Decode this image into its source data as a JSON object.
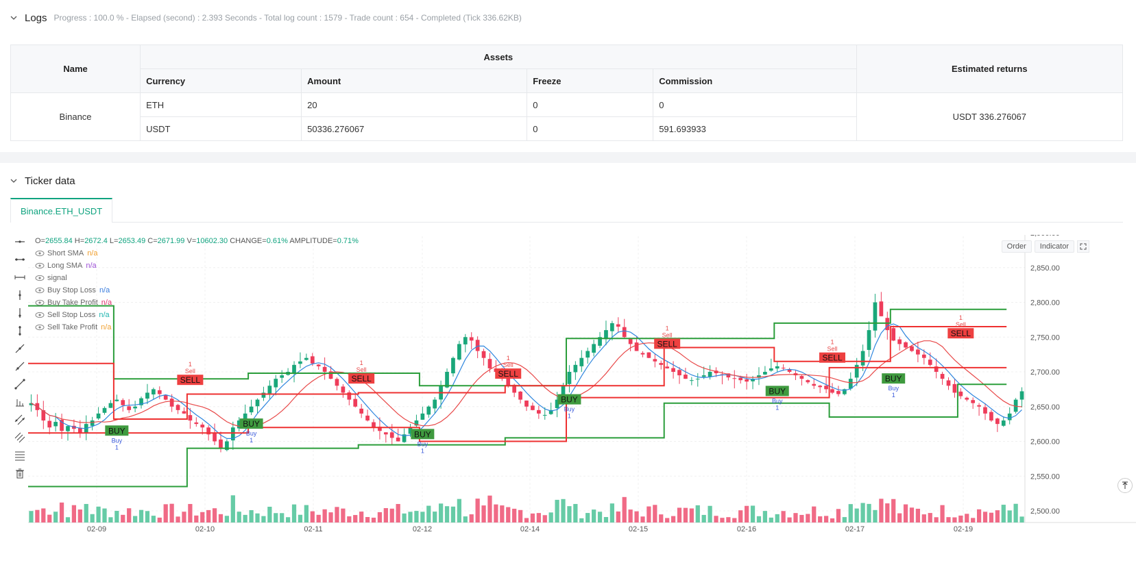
{
  "logs": {
    "title": "Logs",
    "meta": "Progress : 100.0 % - Elapsed (second) : 2.393  Seconds - Total log count : 1579 - Trade count : 654 - Completed (Tick 336.62KB)"
  },
  "assets_table": {
    "col_name": "Name",
    "col_assets": "Assets",
    "col_returns": "Estimated returns",
    "sub_headers": [
      "Currency",
      "Amount",
      "Freeze",
      "Commission"
    ],
    "exchange": "Binance",
    "rows": [
      {
        "currency": "ETH",
        "amount": "20",
        "freeze": "0",
        "commission": "0"
      },
      {
        "currency": "USDT",
        "amount": "50336.276067",
        "freeze": "0",
        "commission": "591.693933"
      }
    ],
    "estimated_returns": "USDT 336.276067"
  },
  "ticker": {
    "title": "Ticker data",
    "tab": "Binance.ETH_USDT"
  },
  "chart_header": {
    "ohlc": [
      {
        "k": "O=",
        "v": "2655.84"
      },
      {
        "k": " H=",
        "v": "2672.4"
      },
      {
        "k": " L=",
        "v": "2653.49"
      },
      {
        "k": " C=",
        "v": "2671.99"
      },
      {
        "k": " V=",
        "v": "10602.30"
      },
      {
        "k": " CHANGE=",
        "v": "0.61%"
      },
      {
        "k": " AMPLITUDE=",
        "v": "0.71%"
      }
    ],
    "indicators": [
      {
        "name": "Short SMA",
        "value": "n/a",
        "color": "#f0a030"
      },
      {
        "name": "Long SMA",
        "value": "n/a",
        "color": "#9c4fd6"
      },
      {
        "name": "signal",
        "value": "",
        "color": "#666666"
      },
      {
        "name": "Buy Stop Loss",
        "value": "n/a",
        "color": "#3b7ddd"
      },
      {
        "name": "Buy Take Profit",
        "value": "n/a",
        "color": "#e0316e"
      },
      {
        "name": "Sell Stop Loss",
        "value": "n/a",
        "color": "#1fb5b0"
      },
      {
        "name": "Sell Take Profit",
        "value": "n/a",
        "color": "#f0a030"
      }
    ],
    "order_btn": "Order",
    "indicator_btn": "Indicator"
  },
  "chart_data": {
    "type": "candlestick",
    "symbol": "ETH_USDT",
    "x_ticks": [
      "02-09",
      "02-10",
      "02-11",
      "02-12",
      "02-14",
      "02-15",
      "02-16",
      "02-17",
      "02-19"
    ],
    "y_ticks": [
      "2,900.00",
      "2,850.00",
      "2,800.00",
      "2,750.00",
      "2,700.00",
      "2,650.00",
      "2,600.00",
      "2,550.00",
      "2,500.00"
    ],
    "ylim": [
      2490,
      2910
    ],
    "close_series": [
      2655,
      2645,
      2630,
      2620,
      2628,
      2615,
      2622,
      2618,
      2612,
      2625,
      2630,
      2640,
      2648,
      2655,
      2660,
      2652,
      2645,
      2650,
      2662,
      2670,
      2675,
      2668,
      2660,
      2650,
      2645,
      2640,
      2630,
      2625,
      2620,
      2610,
      2600,
      2590,
      2600,
      2620,
      2630,
      2640,
      2650,
      2660,
      2670,
      2680,
      2690,
      2695,
      2700,
      2710,
      2715,
      2720,
      2712,
      2708,
      2700,
      2690,
      2680,
      2670,
      2660,
      2650,
      2640,
      2630,
      2620,
      2615,
      2610,
      2605,
      2600,
      2610,
      2620,
      2630,
      2640,
      2650,
      2660,
      2680,
      2700,
      2720,
      2740,
      2750,
      2745,
      2730,
      2720,
      2705,
      2700,
      2690,
      2680,
      2670,
      2660,
      2650,
      2645,
      2640,
      2638,
      2645,
      2660,
      2680,
      2700,
      2710,
      2720,
      2730,
      2740,
      2750,
      2760,
      2770,
      2765,
      2750,
      2740,
      2730,
      2725,
      2720,
      2715,
      2710,
      2705,
      2700,
      2695,
      2690,
      2688,
      2690,
      2695,
      2700,
      2698,
      2695,
      2692,
      2690,
      2688,
      2686,
      2690,
      2695,
      2700,
      2705,
      2708,
      2705,
      2700,
      2695,
      2690,
      2685,
      2680,
      2678,
      2675,
      2670,
      2668,
      2675,
      2690,
      2710,
      2730,
      2760,
      2800,
      2780,
      2760,
      2745,
      2740,
      2735,
      2730,
      2725,
      2720,
      2710,
      2700,
      2690,
      2680,
      2670,
      2665,
      2660,
      2655,
      2650,
      2640,
      2630,
      2625,
      2630,
      2640,
      2660,
      2672
    ],
    "sma_short_color": "#2e86de",
    "sma_long_color": "#e84848",
    "signals": [
      {
        "type": "BUY",
        "at_index": 14,
        "price": 2615
      },
      {
        "type": "SELL",
        "at_index": 26,
        "price": 2688
      },
      {
        "type": "BUY",
        "at_index": 36,
        "price": 2625
      },
      {
        "type": "SELL",
        "at_index": 54,
        "price": 2690
      },
      {
        "type": "BUY",
        "at_index": 64,
        "price": 2610
      },
      {
        "type": "SELL",
        "at_index": 78,
        "price": 2697
      },
      {
        "type": "BUY",
        "at_index": 88,
        "price": 2660
      },
      {
        "type": "SELL",
        "at_index": 104,
        "price": 2740
      },
      {
        "type": "BUY",
        "at_index": 122,
        "price": 2672
      },
      {
        "type": "SELL",
        "at_index": 131,
        "price": 2720
      },
      {
        "type": "BUY",
        "at_index": 141,
        "price": 2690
      },
      {
        "type": "SELL",
        "at_index": 152,
        "price": 2755
      }
    ],
    "labels": {
      "buy": "BUY",
      "sell": "SELL",
      "buy_small": "Buy",
      "sell_small": "Sell",
      "qty": "1"
    },
    "green_steps": [
      [
        0,
        2795
      ],
      [
        14,
        2795
      ],
      [
        14,
        2690
      ],
      [
        36,
        2690
      ],
      [
        36,
        2698
      ],
      [
        64,
        2698
      ],
      [
        64,
        2680
      ],
      [
        88,
        2680
      ],
      [
        88,
        2748
      ],
      [
        122,
        2748
      ],
      [
        122,
        2770
      ],
      [
        141,
        2770
      ],
      [
        141,
        2790
      ],
      [
        160,
        2790
      ]
    ],
    "green_steps_low": [
      [
        0,
        2535
      ],
      [
        26,
        2535
      ],
      [
        26,
        2590
      ],
      [
        54,
        2590
      ],
      [
        54,
        2595
      ],
      [
        78,
        2595
      ],
      [
        78,
        2605
      ],
      [
        104,
        2605
      ],
      [
        104,
        2655
      ],
      [
        131,
        2655
      ],
      [
        131,
        2635
      ],
      [
        152,
        2635
      ],
      [
        152,
        2682
      ],
      [
        160,
        2682
      ]
    ],
    "red_steps_high": [
      [
        0,
        2712
      ],
      [
        14,
        2712
      ],
      [
        14,
        2632
      ],
      [
        26,
        2632
      ],
      [
        26,
        2668
      ],
      [
        54,
        2668
      ],
      [
        54,
        2670
      ],
      [
        78,
        2670
      ],
      [
        78,
        2680
      ],
      [
        104,
        2680
      ],
      [
        104,
        2735
      ],
      [
        122,
        2735
      ],
      [
        122,
        2715
      ],
      [
        141,
        2715
      ],
      [
        141,
        2765
      ],
      [
        160,
        2765
      ]
    ],
    "red_steps_low": [
      [
        0,
        2612
      ],
      [
        26,
        2612
      ],
      [
        36,
        2612
      ],
      [
        36,
        2620
      ],
      [
        64,
        2620
      ],
      [
        64,
        2600
      ],
      [
        88,
        2600
      ],
      [
        88,
        2663
      ],
      [
        131,
        2663
      ],
      [
        131,
        2706
      ],
      [
        152,
        2706
      ],
      [
        160,
        2706
      ]
    ]
  }
}
